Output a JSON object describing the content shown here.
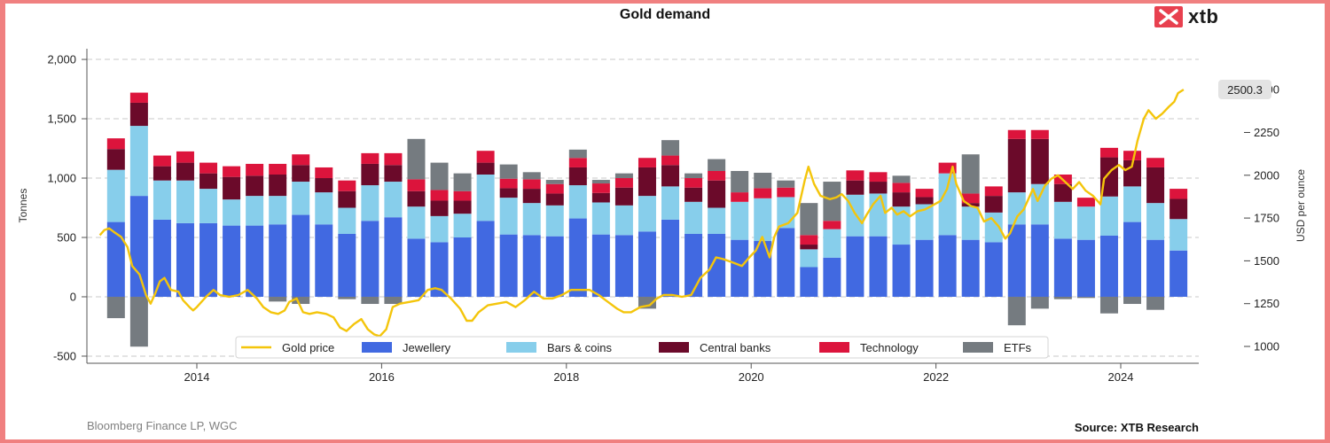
{
  "chart_data": {
    "type": "bar",
    "title": "Gold demand",
    "ylabel": "Tonnes",
    "y2label": "USD per ounce",
    "ylim": [
      -560,
      2090
    ],
    "y_ticks": [
      "-500",
      "0",
      "500",
      "1,000",
      "1,500",
      "2,000"
    ],
    "y2_ticks": [
      "1000",
      "1250",
      "1500",
      "1750",
      "2000",
      "2250",
      "2500"
    ],
    "x_ticks": [
      "2014",
      "2016",
      "2018",
      "2020",
      "2022",
      "2024"
    ],
    "grid": "horizontal dashed",
    "legend_position": "bottom",
    "stacked_series_colors": {
      "Jewellery": "#4169e1",
      "Bars & coins": "#87ceeb",
      "Central banks": "#6b0a2a",
      "Technology": "#dc143c",
      "ETFs": "#757b80"
    },
    "line_color": "#f4c50b",
    "legend": [
      "Gold price",
      "Jewellery",
      "Bars & coins",
      "Central banks",
      "Technology",
      "ETFs"
    ],
    "price_label": "2500.3",
    "quarters": [
      "2013 Q1",
      "2013 Q2",
      "2013 Q3",
      "2013 Q4",
      "2014 Q1",
      "2014 Q2",
      "2014 Q3",
      "2014 Q4",
      "2015 Q1",
      "2015 Q2",
      "2015 Q3",
      "2015 Q4",
      "2016 Q1",
      "2016 Q2",
      "2016 Q3",
      "2016 Q4",
      "2017 Q1",
      "2017 Q2",
      "2017 Q3",
      "2017 Q4",
      "2018 Q1",
      "2018 Q2",
      "2018 Q3",
      "2018 Q4",
      "2019 Q1",
      "2019 Q2",
      "2019 Q3",
      "2019 Q4",
      "2020 Q1",
      "2020 Q2",
      "2020 Q3",
      "2020 Q4",
      "2021 Q1",
      "2021 Q2",
      "2021 Q3",
      "2021 Q4",
      "2022 Q1",
      "2022 Q2",
      "2022 Q3",
      "2022 Q4",
      "2023 Q1",
      "2023 Q2",
      "2023 Q3",
      "2023 Q4",
      "2024 Q1",
      "2024 Q2",
      "2024 Q3"
    ],
    "series": [
      {
        "name": "Jewellery",
        "values": [
          630,
          850,
          650,
          620,
          620,
          600,
          600,
          610,
          690,
          610,
          530,
          640,
          670,
          490,
          460,
          500,
          640,
          525,
          520,
          510,
          660,
          525,
          520,
          550,
          650,
          530,
          530,
          480,
          470,
          580,
          250,
          330,
          510,
          510,
          440,
          480,
          520,
          480,
          460,
          610,
          610,
          490,
          480,
          515,
          630,
          480,
          390
        ]
      },
      {
        "name": "Bars & coins",
        "values": [
          440,
          590,
          330,
          360,
          290,
          220,
          250,
          240,
          280,
          270,
          220,
          300,
          300,
          270,
          220,
          200,
          390,
          310,
          270,
          260,
          280,
          270,
          250,
          300,
          280,
          270,
          220,
          320,
          360,
          260,
          150,
          240,
          350,
          360,
          320,
          300,
          520,
          280,
          250,
          270,
          340,
          310,
          280,
          330,
          300,
          310,
          265
        ]
      },
      {
        "name": "Central banks",
        "values": [
          175,
          195,
          120,
          150,
          130,
          190,
          170,
          180,
          140,
          120,
          140,
          180,
          140,
          130,
          130,
          110,
          100,
          80,
          120,
          100,
          150,
          80,
          150,
          240,
          180,
          120,
          230,
          0,
          0,
          0,
          40,
          0,
          120,
          100,
          120,
          60,
          0,
          30,
          140,
          450,
          380,
          150,
          0,
          330,
          220,
          300,
          170
        ]
      },
      {
        "name": "Technology",
        "values": [
          90,
          85,
          90,
          95,
          90,
          90,
          100,
          90,
          90,
          90,
          90,
          90,
          100,
          100,
          90,
          80,
          100,
          80,
          80,
          80,
          80,
          80,
          80,
          80,
          80,
          80,
          80,
          80,
          85,
          80,
          80,
          70,
          85,
          80,
          80,
          70,
          90,
          80,
          80,
          75,
          75,
          80,
          75,
          80,
          80,
          80,
          85
        ]
      },
      {
        "name": "ETFs",
        "values": [
          -180,
          -420,
          0,
          0,
          0,
          0,
          0,
          -40,
          -60,
          0,
          -20,
          -60,
          -60,
          340,
          230,
          150,
          0,
          120,
          60,
          35,
          70,
          30,
          40,
          -100,
          130,
          40,
          100,
          180,
          130,
          60,
          270,
          330,
          0,
          0,
          60,
          0,
          0,
          330,
          0,
          -240,
          -100,
          -20,
          -10,
          -140,
          -60,
          -110,
          0
        ]
      }
    ],
    "price_points": [
      [
        2012.95,
        1650
      ],
      [
        2013.0,
        1680
      ],
      [
        2013.05,
        1690
      ],
      [
        2013.1,
        1670
      ],
      [
        2013.18,
        1640
      ],
      [
        2013.25,
        1580
      ],
      [
        2013.3,
        1470
      ],
      [
        2013.38,
        1420
      ],
      [
        2013.45,
        1300
      ],
      [
        2013.5,
        1250
      ],
      [
        2013.55,
        1310
      ],
      [
        2013.6,
        1380
      ],
      [
        2013.65,
        1400
      ],
      [
        2013.72,
        1330
      ],
      [
        2013.8,
        1320
      ],
      [
        2013.85,
        1270
      ],
      [
        2013.92,
        1230
      ],
      [
        2013.96,
        1210
      ],
      [
        2014.0,
        1230
      ],
      [
        2014.1,
        1290
      ],
      [
        2014.18,
        1330
      ],
      [
        2014.25,
        1300
      ],
      [
        2014.35,
        1290
      ],
      [
        2014.45,
        1300
      ],
      [
        2014.55,
        1330
      ],
      [
        2014.65,
        1280
      ],
      [
        2014.72,
        1230
      ],
      [
        2014.8,
        1200
      ],
      [
        2014.88,
        1190
      ],
      [
        2014.95,
        1210
      ],
      [
        2015.0,
        1260
      ],
      [
        2015.08,
        1280
      ],
      [
        2015.15,
        1200
      ],
      [
        2015.22,
        1190
      ],
      [
        2015.3,
        1200
      ],
      [
        2015.4,
        1190
      ],
      [
        2015.48,
        1170
      ],
      [
        2015.55,
        1110
      ],
      [
        2015.62,
        1090
      ],
      [
        2015.7,
        1130
      ],
      [
        2015.78,
        1160
      ],
      [
        2015.85,
        1100
      ],
      [
        2015.92,
        1070
      ],
      [
        2015.98,
        1060
      ],
      [
        2016.05,
        1100
      ],
      [
        2016.12,
        1230
      ],
      [
        2016.2,
        1250
      ],
      [
        2016.3,
        1260
      ],
      [
        2016.4,
        1270
      ],
      [
        2016.5,
        1330
      ],
      [
        2016.58,
        1340
      ],
      [
        2016.65,
        1330
      ],
      [
        2016.75,
        1280
      ],
      [
        2016.85,
        1220
      ],
      [
        2016.92,
        1150
      ],
      [
        2016.98,
        1150
      ],
      [
        2017.05,
        1200
      ],
      [
        2017.15,
        1240
      ],
      [
        2017.25,
        1250
      ],
      [
        2017.35,
        1260
      ],
      [
        2017.45,
        1230
      ],
      [
        2017.55,
        1270
      ],
      [
        2017.65,
        1320
      ],
      [
        2017.75,
        1280
      ],
      [
        2017.85,
        1280
      ],
      [
        2017.95,
        1300
      ],
      [
        2018.05,
        1330
      ],
      [
        2018.15,
        1330
      ],
      [
        2018.25,
        1330
      ],
      [
        2018.35,
        1300
      ],
      [
        2018.45,
        1260
      ],
      [
        2018.55,
        1220
      ],
      [
        2018.62,
        1200
      ],
      [
        2018.7,
        1200
      ],
      [
        2018.8,
        1230
      ],
      [
        2018.9,
        1240
      ],
      [
        2018.98,
        1280
      ],
      [
        2019.05,
        1300
      ],
      [
        2019.15,
        1300
      ],
      [
        2019.25,
        1290
      ],
      [
        2019.35,
        1300
      ],
      [
        2019.45,
        1400
      ],
      [
        2019.55,
        1450
      ],
      [
        2019.62,
        1520
      ],
      [
        2019.7,
        1510
      ],
      [
        2019.8,
        1490
      ],
      [
        2019.9,
        1470
      ],
      [
        2019.98,
        1520
      ],
      [
        2020.05,
        1560
      ],
      [
        2020.12,
        1640
      ],
      [
        2020.2,
        1520
      ],
      [
        2020.25,
        1640
      ],
      [
        2020.3,
        1700
      ],
      [
        2020.4,
        1720
      ],
      [
        2020.5,
        1780
      ],
      [
        2020.58,
        1970
      ],
      [
        2020.62,
        2050
      ],
      [
        2020.68,
        1950
      ],
      [
        2020.75,
        1880
      ],
      [
        2020.85,
        1860
      ],
      [
        2020.92,
        1870
      ],
      [
        2020.98,
        1890
      ],
      [
        2021.05,
        1850
      ],
      [
        2021.12,
        1780
      ],
      [
        2021.2,
        1720
      ],
      [
        2021.25,
        1770
      ],
      [
        2021.32,
        1830
      ],
      [
        2021.4,
        1880
      ],
      [
        2021.45,
        1780
      ],
      [
        2021.52,
        1810
      ],
      [
        2021.58,
        1770
      ],
      [
        2021.65,
        1790
      ],
      [
        2021.72,
        1760
      ],
      [
        2021.8,
        1790
      ],
      [
        2021.88,
        1800
      ],
      [
        2021.95,
        1820
      ],
      [
        2022.05,
        1850
      ],
      [
        2022.12,
        1920
      ],
      [
        2022.18,
        2050
      ],
      [
        2022.22,
        1950
      ],
      [
        2022.3,
        1850
      ],
      [
        2022.38,
        1820
      ],
      [
        2022.45,
        1810
      ],
      [
        2022.52,
        1730
      ],
      [
        2022.6,
        1750
      ],
      [
        2022.68,
        1700
      ],
      [
        2022.75,
        1630
      ],
      [
        2022.8,
        1660
      ],
      [
        2022.88,
        1760
      ],
      [
        2022.95,
        1800
      ],
      [
        2023.05,
        1920
      ],
      [
        2023.1,
        1850
      ],
      [
        2023.18,
        1940
      ],
      [
        2023.25,
        1980
      ],
      [
        2023.32,
        2000
      ],
      [
        2023.4,
        1960
      ],
      [
        2023.48,
        1920
      ],
      [
        2023.55,
        1960
      ],
      [
        2023.62,
        1910
      ],
      [
        2023.7,
        1880
      ],
      [
        2023.78,
        1830
      ],
      [
        2023.82,
        1980
      ],
      [
        2023.9,
        2030
      ],
      [
        2023.98,
        2060
      ],
      [
        2024.05,
        2030
      ],
      [
        2024.12,
        2050
      ],
      [
        2024.18,
        2200
      ],
      [
        2024.25,
        2330
      ],
      [
        2024.3,
        2380
      ],
      [
        2024.38,
        2330
      ],
      [
        2024.45,
        2360
      ],
      [
        2024.52,
        2400
      ],
      [
        2024.58,
        2430
      ],
      [
        2024.62,
        2480
      ],
      [
        2024.68,
        2500.3
      ]
    ]
  },
  "header": {
    "title": "Gold demand",
    "logo_text": "xtb"
  },
  "footer": {
    "data_source": "Bloomberg Finance LP, WGC",
    "attribution": "Source: XTB Research"
  }
}
